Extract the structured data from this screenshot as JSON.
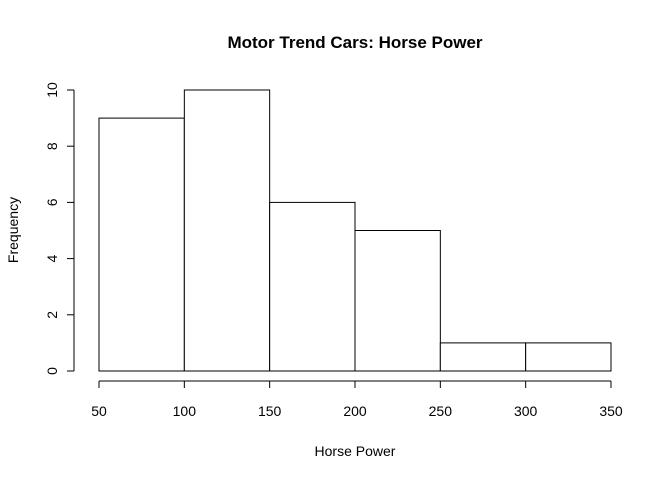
{
  "chart_data": {
    "type": "bar",
    "title": "Motor Trend Cars: Horse Power",
    "xlabel": "Horse Power",
    "ylabel": "Frequency",
    "bins": [
      {
        "start": 50,
        "end": 100,
        "count": 9
      },
      {
        "start": 100,
        "end": 150,
        "count": 10
      },
      {
        "start": 150,
        "end": 200,
        "count": 6
      },
      {
        "start": 200,
        "end": 250,
        "count": 5
      },
      {
        "start": 250,
        "end": 300,
        "count": 1
      },
      {
        "start": 300,
        "end": 350,
        "count": 1
      }
    ],
    "xlim": [
      50,
      350
    ],
    "ylim": [
      0,
      10
    ],
    "xticks": [
      "50",
      "100",
      "150",
      "200",
      "250",
      "300",
      "350"
    ],
    "yticks": [
      "0",
      "2",
      "4",
      "6",
      "8",
      "10"
    ],
    "grid": false,
    "colors": {
      "bar_fill": "#ffffff",
      "bar_stroke": "#000000"
    }
  }
}
